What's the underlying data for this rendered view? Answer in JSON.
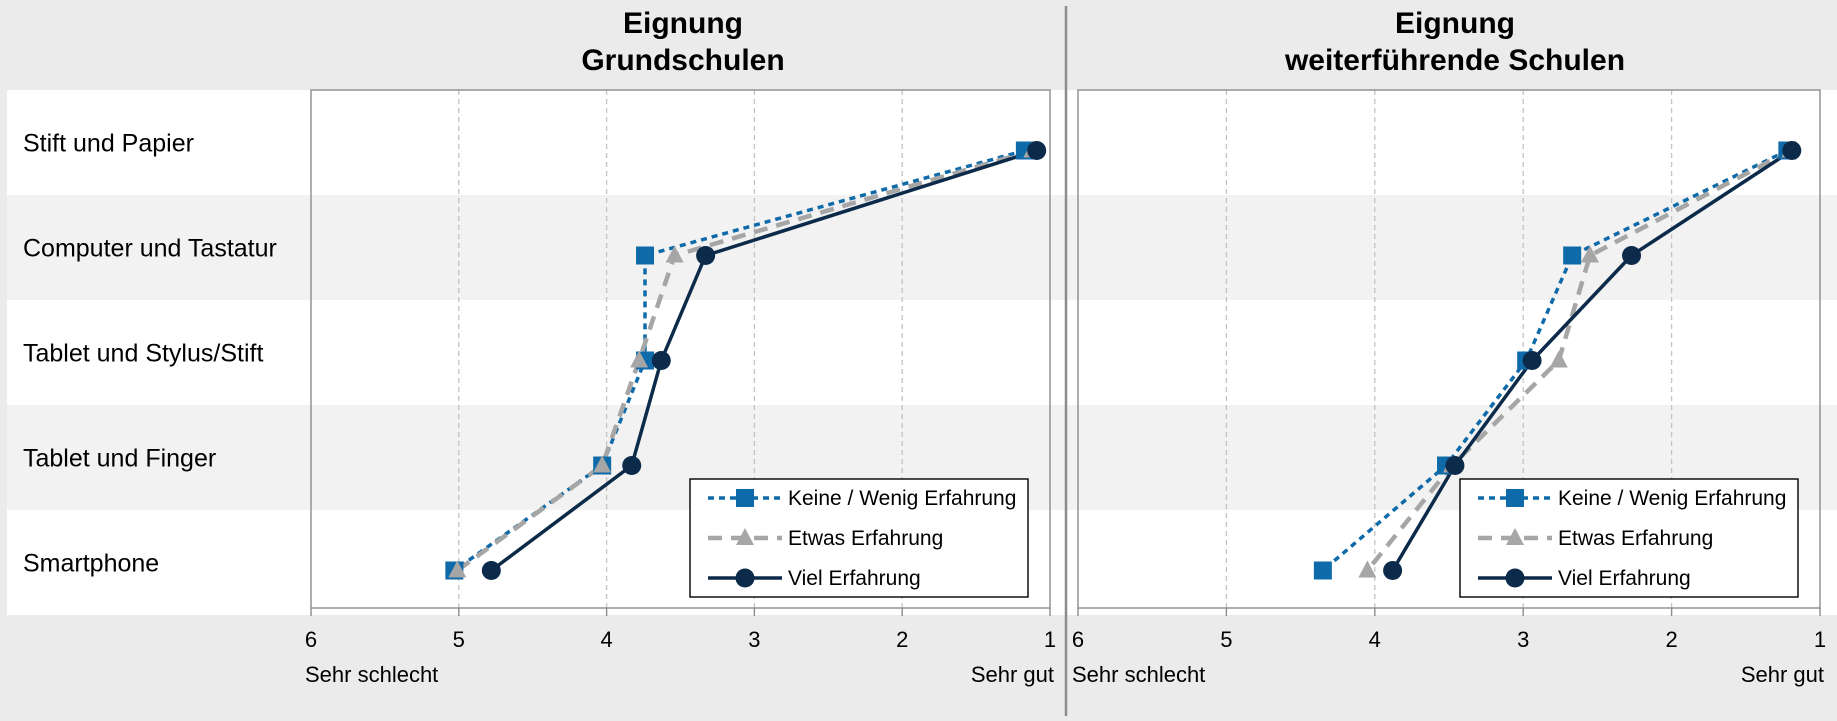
{
  "chart_data": [
    {
      "type": "line",
      "title": [
        "Eignung",
        "Grundschulen"
      ],
      "categories": [
        "Stift und Papier",
        "Computer und Tastatur",
        "Tablet und Stylus/Stift",
        "Tablet und Finger",
        "Smartphone"
      ],
      "x_axis": {
        "ticks": [
          6,
          5,
          4,
          3,
          2,
          1
        ],
        "xlim": [
          6,
          1
        ],
        "left_label": "Sehr schlecht",
        "right_label": "Sehr gut",
        "grid": "dashed-vertical"
      },
      "legend_position": "bottom-right",
      "series": [
        {
          "name": "Keine / Wenig Erfahrung",
          "color": "#0e6aa8",
          "line": "dotted",
          "marker": "square",
          "values": [
            1.17,
            3.74,
            3.74,
            4.03,
            5.03
          ]
        },
        {
          "name": "Etwas Erfahrung",
          "color": "#a6a6a6",
          "line": "dashed",
          "marker": "triangle",
          "values": [
            1.12,
            3.54,
            3.78,
            4.03,
            5.01
          ]
        },
        {
          "name": "Viel Erfahrung",
          "color": "#0c2a49",
          "line": "solid",
          "marker": "circle",
          "values": [
            1.09,
            3.33,
            3.63,
            3.83,
            4.78
          ]
        }
      ]
    },
    {
      "type": "line",
      "title": [
        "Eignung",
        "weiterführende Schulen"
      ],
      "categories": [
        "Stift und Papier",
        "Computer und Tastatur",
        "Tablet und Stylus/Stift",
        "Tablet und Finger",
        "Smartphone"
      ],
      "x_axis": {
        "ticks": [
          6,
          5,
          4,
          3,
          2,
          1
        ],
        "xlim": [
          6,
          1
        ],
        "left_label": "Sehr schlecht",
        "right_label": "Sehr gut",
        "grid": "dashed-vertical"
      },
      "legend_position": "bottom-right",
      "series": [
        {
          "name": "Keine / Wenig Erfahrung",
          "color": "#0e6aa8",
          "line": "dotted",
          "marker": "square",
          "values": [
            1.22,
            2.67,
            2.98,
            3.52,
            4.35
          ]
        },
        {
          "name": "Etwas Erfahrung",
          "color": "#a6a6a6",
          "line": "dashed",
          "marker": "triangle",
          "values": [
            1.2,
            2.55,
            2.76,
            3.48,
            4.05
          ]
        },
        {
          "name": "Viel Erfahrung",
          "color": "#0c2a49",
          "line": "solid",
          "marker": "circle",
          "values": [
            1.19,
            2.27,
            2.94,
            3.46,
            3.88
          ]
        }
      ]
    }
  ]
}
